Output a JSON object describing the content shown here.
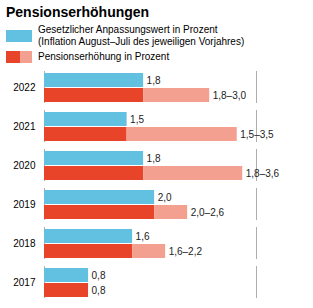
{
  "chart_data": {
    "type": "bar",
    "orientation": "horizontal",
    "title": "Pensionserhöhungen",
    "categories": [
      "2022",
      "2021",
      "2020",
      "2019",
      "2018",
      "2017"
    ],
    "series": [
      {
        "name": "Gesetzlicher Anpassungswert in Prozent\n(Inflation August–Juli des jeweiligen Vorjahres)",
        "color": "#62C0E0",
        "values": [
          1.8,
          1.5,
          1.8,
          2.0,
          1.6,
          0.8
        ],
        "value_labels": [
          "1,8",
          "1,5",
          "1,8",
          "2,0",
          "1,6",
          "0,8"
        ]
      },
      {
        "name": "Pensionserhöhung in Prozent",
        "colors": [
          "#E8442A",
          "#F4A090"
        ],
        "values": [
          1.8,
          1.5,
          1.8,
          2.0,
          1.6,
          0.8
        ],
        "max": [
          3.0,
          3.5,
          3.6,
          2.6,
          2.2,
          0.8
        ],
        "value_labels": [
          "1,8–3,0",
          "1,5–3,5",
          "1,8–3,6",
          "2,0–2,6",
          "1,6–2,2",
          "0,8"
        ]
      }
    ],
    "xlim": [
      0,
      3.85
    ],
    "data_labels": true,
    "tick_labels": "y"
  }
}
